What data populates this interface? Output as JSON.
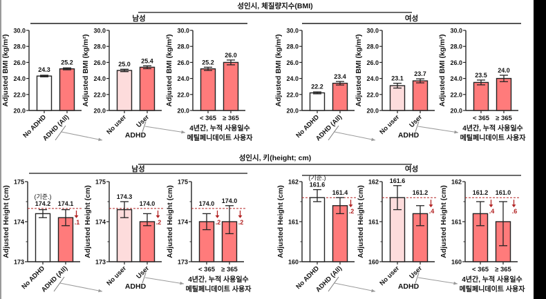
{
  "colors": {
    "none": "#ffffff",
    "light": "#fddcdc",
    "red": "#ff7b7b",
    "ref": "#b22222",
    "arrow": "#999999"
  },
  "chart_data": [
    {
      "type": "bar",
      "section_title": "성인시, 체질량지수(BMI)",
      "groups": [
        {
          "group_title": "남성",
          "panels": [
            {
              "ylabel": "Adjusted BMI (kg/m²)",
              "ylim": [
                20,
                30
              ],
              "ticks": [
                "20.0",
                "22.0",
                "24.0",
                "26.0",
                "28.0",
                "30.0"
              ],
              "tick_values": [
                20,
                22,
                24,
                26,
                28,
                30
              ],
              "categories": [
                "No ADHD",
                "ADHD (All)"
              ],
              "rotated": true,
              "values": [
                24.3,
                25.2
              ],
              "labels": [
                "24.3",
                "25.2"
              ],
              "err": [
                0.1,
                0.12
              ],
              "fills": [
                "none",
                "red"
              ],
              "xtitle": ""
            },
            {
              "ylabel": "Adjusted BMI (kg/m²)",
              "ylim": [
                20,
                30
              ],
              "ticks": [
                "20.0",
                "22.0",
                "24.0",
                "26.0",
                "28.0",
                "30.0"
              ],
              "tick_values": [
                20,
                22,
                24,
                26,
                28,
                30
              ],
              "categories": [
                "No user",
                "User"
              ],
              "rotated": true,
              "values": [
                25.0,
                25.4
              ],
              "labels": [
                "25.0",
                "25.4"
              ],
              "err": [
                0.15,
                0.18
              ],
              "fills": [
                "light",
                "red"
              ],
              "xtitle": "ADHD"
            },
            {
              "ylabel": "Adjusted BMI (kg/m²)",
              "ylim": [
                20,
                30
              ],
              "ticks": [
                "20.0",
                "22.0",
                "24.0",
                "26.0",
                "28.0",
                "30.0"
              ],
              "tick_values": [
                20,
                22,
                24,
                26,
                28,
                30
              ],
              "categories": [
                "< 365",
                "≥ 365"
              ],
              "rotated": false,
              "values": [
                25.2,
                26.0
              ],
              "labels": [
                "25.2",
                "26.0"
              ],
              "err": [
                0.2,
                0.3
              ],
              "fills": [
                "red",
                "red"
              ],
              "xtitle": "4년간, 누적 사용일수",
              "xtitle2": "메틸페니데이트 사용자"
            }
          ]
        },
        {
          "group_title": "여성",
          "panels": [
            {
              "ylabel": "Adjusted BMI (kg/m²)",
              "ylim": [
                20,
                30
              ],
              "ticks": [
                "20.0",
                "22.0",
                "24.0",
                "26.0",
                "28.0",
                "30.0"
              ],
              "tick_values": [
                20,
                22,
                24,
                26,
                28,
                30
              ],
              "categories": [
                "No ADHD",
                "ADHD (All)"
              ],
              "rotated": true,
              "values": [
                22.2,
                23.4
              ],
              "labels": [
                "22.2",
                "23.4"
              ],
              "err": [
                0.12,
                0.22
              ],
              "fills": [
                "none",
                "red"
              ],
              "xtitle": ""
            },
            {
              "ylabel": "Adjusted BMI (kg/m²)",
              "ylim": [
                20,
                30
              ],
              "ticks": [
                "20.0",
                "22.0",
                "24.0",
                "26.0",
                "28.0",
                "30.0"
              ],
              "tick_values": [
                20,
                22,
                24,
                26,
                28,
                30
              ],
              "categories": [
                "No user",
                "User"
              ],
              "rotated": true,
              "values": [
                23.1,
                23.7
              ],
              "labels": [
                "23.1",
                "23.7"
              ],
              "err": [
                0.3,
                0.25
              ],
              "fills": [
                "light",
                "red"
              ],
              "xtitle": "ADHD"
            },
            {
              "ylabel": "Adjusted BMI (kg/m²)",
              "ylim": [
                20,
                30
              ],
              "ticks": [
                "20.0",
                "22.0",
                "24.0",
                "26.0",
                "28.0",
                "30.0"
              ],
              "tick_values": [
                20,
                22,
                24,
                26,
                28,
                30
              ],
              "categories": [
                "< 365",
                "≥ 365"
              ],
              "rotated": false,
              "values": [
                23.5,
                24.0
              ],
              "labels": [
                "23.5",
                "24.0"
              ],
              "err": [
                0.3,
                0.4
              ],
              "fills": [
                "red",
                "red"
              ],
              "xtitle": "4년간, 누적 사용일수",
              "xtitle2": "메틸페니데이트 사용자"
            }
          ]
        }
      ]
    },
    {
      "type": "bar",
      "section_title": "성인시, 키(height; cm)",
      "groups": [
        {
          "group_title": "남성",
          "reference": 174.33,
          "panels": [
            {
              "ylabel": "Adjusted Height (cm)",
              "ylim": [
                173,
                175
              ],
              "ticks": [
                "173",
                "174",
                "175"
              ],
              "tick_values": [
                173,
                174,
                175
              ],
              "minor": [
                173.5,
                174.5
              ],
              "categories": [
                "No ADHD",
                "ADHD (All)"
              ],
              "rotated": true,
              "values": [
                174.2,
                174.1
              ],
              "labels": [
                "174.2",
                "174.1"
              ],
              "note": "(기준.)",
              "err": [
                0.1,
                0.2
              ],
              "fills": [
                "none",
                "red"
              ],
              "drops": [
                "",
                ".1"
              ],
              "xtitle": ""
            },
            {
              "ylabel": "Adjusted Height (cm)",
              "ylim": [
                173,
                175
              ],
              "ticks": [
                "173",
                "174",
                "175"
              ],
              "tick_values": [
                173,
                174,
                175
              ],
              "minor": [
                173.5,
                174.5
              ],
              "categories": [
                "No user",
                "User"
              ],
              "rotated": true,
              "values": [
                174.3,
                174.0
              ],
              "labels": [
                "174.3",
                "174.0"
              ],
              "err": [
                0.2,
                0.1
              ],
              "err_up": [
                0.2,
                0.2
              ],
              "fills": [
                "light",
                "red"
              ],
              "drops": [
                "",
                ".2"
              ],
              "xtitle": "ADHD"
            },
            {
              "ylabel": "Adjusted Height (cm)",
              "ylim": [
                173,
                175
              ],
              "ticks": [
                "173",
                "174",
                "175"
              ],
              "tick_values": [
                173,
                174,
                175
              ],
              "minor": [
                173.5,
                174.5
              ],
              "categories": [
                "< 365",
                "≥ 365"
              ],
              "rotated": false,
              "values": [
                174.0,
                174.0
              ],
              "labels": [
                "174.0",
                "174.0"
              ],
              "err": [
                0.2,
                0.3
              ],
              "err_up": [
                0.2,
                0.4
              ],
              "fills": [
                "red",
                "red"
              ],
              "drops": [
                ".2",
                ".2"
              ],
              "xtitle": "4년간, 누적 사용일수",
              "xtitle2": "메틸페니데이트 사용자"
            }
          ]
        },
        {
          "group_title": "여성",
          "reference": 161.6,
          "panels": [
            {
              "ylabel": "Adjusted Height (cm)",
              "ylim": [
                160,
                162
              ],
              "ticks": [
                "160",
                "161",
                "162"
              ],
              "tick_values": [
                160,
                161,
                162
              ],
              "minor": [
                160.5,
                161.5
              ],
              "categories": [
                "No ADHD",
                "ADHD (All)"
              ],
              "rotated": true,
              "values": [
                161.6,
                161.4
              ],
              "labels": [
                "161.6",
                "161.4"
              ],
              "note": "(기준.)",
              "err": [
                0.1,
                0.2
              ],
              "err_up": [
                0.2,
                0.2
              ],
              "fills": [
                "none",
                "red"
              ],
              "drops": [
                "",
                ".2"
              ],
              "xtitle": ""
            },
            {
              "ylabel": "Adjusted Height (cm)",
              "ylim": [
                160,
                162
              ],
              "ticks": [
                "160",
                "161",
                "162"
              ],
              "tick_values": [
                160,
                161,
                162
              ],
              "minor": [
                160.5,
                161.5
              ],
              "categories": [
                "No user",
                "User"
              ],
              "rotated": true,
              "values": [
                161.6,
                161.2
              ],
              "labels": [
                "161.6",
                "161.2"
              ],
              "err": [
                0.3,
                0.3
              ],
              "err_up": [
                0.3,
                0.2
              ],
              "fills": [
                "light",
                "red"
              ],
              "drops": [
                "",
                ".4"
              ],
              "xtitle": "ADHD"
            },
            {
              "ylabel": "Adjusted Height (cm)",
              "ylim": [
                160,
                162
              ],
              "ticks": [
                "160",
                "161",
                "162"
              ],
              "tick_values": [
                160,
                161,
                162
              ],
              "minor": [
                160.5,
                161.5
              ],
              "categories": [
                "< 365",
                "≥ 365"
              ],
              "rotated": false,
              "values": [
                161.2,
                161.0
              ],
              "labels": [
                "161.2",
                "161.0"
              ],
              "err": [
                0.3,
                0.6
              ],
              "err_up": [
                0.3,
                0.5
              ],
              "fills": [
                "red",
                "red"
              ],
              "drops": [
                ".4",
                ".6"
              ],
              "xtitle": "4년간, 누적 사용일수",
              "xtitle2": "메틸페니데이트 사용자"
            }
          ]
        }
      ]
    }
  ]
}
